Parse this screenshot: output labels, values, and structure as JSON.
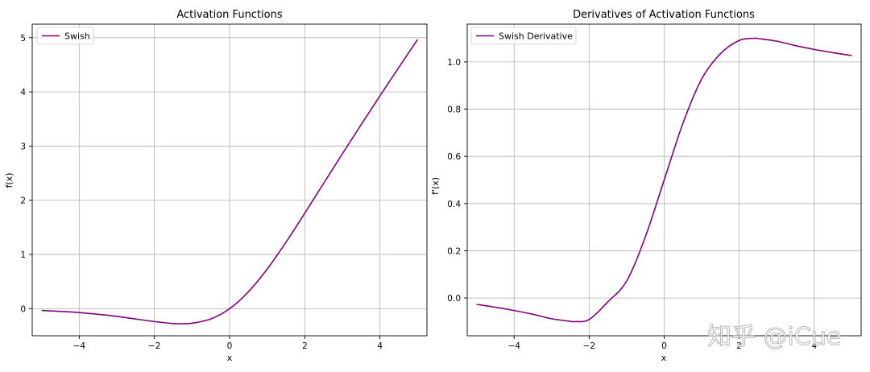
{
  "chart_data": [
    {
      "type": "line",
      "title": "Activation Functions",
      "xlabel": "x",
      "ylabel": "f(x)",
      "xlim": [
        -5.25,
        5.25
      ],
      "ylim": [
        -0.5,
        5.25
      ],
      "xticks": [
        -4,
        -2,
        0,
        2,
        4
      ],
      "xtick_labels": [
        "−4",
        "−2",
        "0",
        "2",
        "4"
      ],
      "yticks": [
        0,
        1,
        2,
        3,
        4,
        5
      ],
      "ytick_labels": [
        "0",
        "1",
        "2",
        "3",
        "4",
        "5"
      ],
      "grid": true,
      "legend": "top-left",
      "series": [
        {
          "name": "Swish",
          "color": "#800080",
          "x": [
            -5,
            -4.5,
            -4,
            -3.5,
            -3,
            -2.5,
            -2,
            -1.5,
            -1.278,
            -1,
            -0.5,
            0,
            0.5,
            1,
            1.5,
            2,
            2.5,
            3,
            3.5,
            4,
            4.5,
            5
          ],
          "y": [
            -0.033,
            -0.05,
            -0.072,
            -0.103,
            -0.142,
            -0.19,
            -0.238,
            -0.274,
            -0.278,
            -0.269,
            -0.189,
            0,
            0.311,
            0.731,
            1.226,
            1.762,
            2.31,
            2.858,
            3.395,
            3.928,
            4.45,
            4.967
          ]
        }
      ]
    },
    {
      "type": "line",
      "title": "Derivatives of Activation Functions",
      "xlabel": "x",
      "ylabel": "f'(x)",
      "xlim": [
        -5.25,
        5.25
      ],
      "ylim": [
        -0.16,
        1.16
      ],
      "xticks": [
        -4,
        -2,
        0,
        2,
        4
      ],
      "xtick_labels": [
        "−4",
        "−2",
        "0",
        "2",
        "4"
      ],
      "yticks": [
        0,
        0.2,
        0.4,
        0.6,
        0.8,
        1.0
      ],
      "ytick_labels": [
        "0.0",
        "0.2",
        "0.4",
        "0.6",
        "0.8",
        "1.0"
      ],
      "grid": true,
      "legend": "top-left",
      "series": [
        {
          "name": "Swish Derivative",
          "color": "#800080",
          "x": [
            -5,
            -4.5,
            -4,
            -3.5,
            -3,
            -2.5,
            -2.4,
            -2,
            -1.5,
            -1,
            -0.5,
            0,
            0.5,
            1,
            1.5,
            2,
            2.4,
            2.5,
            3,
            3.5,
            4,
            4.5,
            5
          ],
          "y": [
            -0.027,
            -0.039,
            -0.053,
            -0.069,
            -0.088,
            -0.099,
            -0.1,
            -0.091,
            -0.016,
            0.072,
            0.26,
            0.5,
            0.74,
            0.928,
            1.035,
            1.091,
            1.1,
            1.099,
            1.088,
            1.069,
            1.053,
            1.039,
            1.027
          ]
        }
      ]
    }
  ],
  "watermark": "知乎 @iCue"
}
